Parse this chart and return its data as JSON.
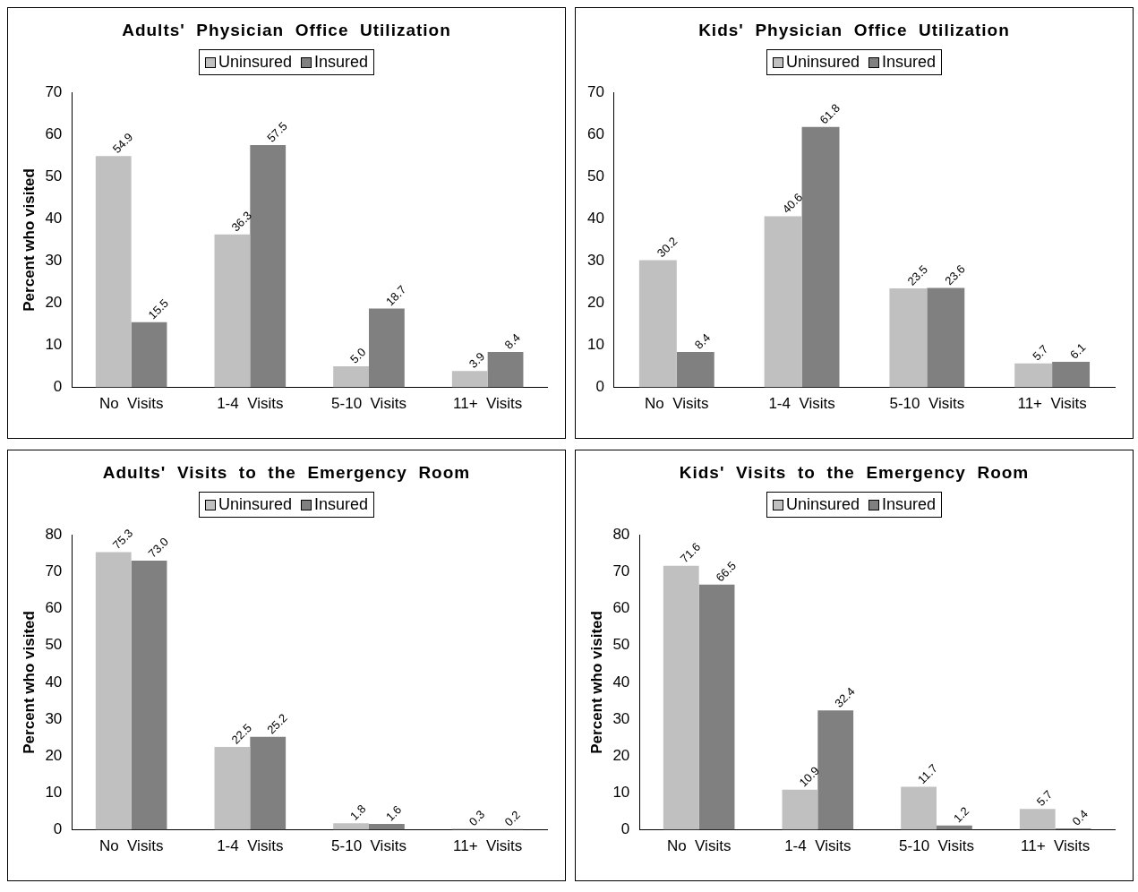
{
  "chart_data": [
    {
      "type": "bar",
      "title": "Adults'  Physician  Office  Utilization",
      "ylabel": "Percent who visited",
      "categories": [
        "No  Visits",
        "1-4  Visits",
        "5-10  Visits",
        "11+  Visits"
      ],
      "series": [
        {
          "name": "Uninsured",
          "color": "#c0c0c0",
          "values": [
            54.9,
            36.3,
            5.0,
            3.9
          ],
          "value_labels": [
            "54.9",
            "36.3",
            "5.0",
            "3.9"
          ]
        },
        {
          "name": "Insured",
          "color": "#808080",
          "values": [
            15.5,
            57.5,
            18.7,
            8.4
          ],
          "value_labels": [
            "15.5",
            "57.5",
            "18.7",
            "8.4"
          ]
        }
      ],
      "ylim": [
        0,
        70
      ],
      "yticks": [
        0,
        10,
        20,
        30,
        40,
        50,
        60,
        70
      ],
      "legend": "top",
      "grid": false
    },
    {
      "type": "bar",
      "title": "Kids'  Physician  Office  Utilization",
      "categories": [
        "No  Visits",
        "1-4  Visits",
        "5-10  Visits",
        "11+  Visits"
      ],
      "series": [
        {
          "name": "Uninsured",
          "color": "#c0c0c0",
          "values": [
            30.2,
            40.6,
            23.5,
            5.7
          ],
          "value_labels": [
            "30.2",
            "40.6",
            "23.5",
            "5.7"
          ]
        },
        {
          "name": "Insured",
          "color": "#808080",
          "values": [
            8.4,
            61.8,
            23.6,
            6.1
          ],
          "value_labels": [
            "8.4",
            "61.8",
            "23.6",
            "6.1"
          ]
        }
      ],
      "ylim": [
        0,
        70
      ],
      "yticks": [
        0,
        10,
        20,
        30,
        40,
        50,
        60,
        70
      ],
      "legend": "top",
      "grid": false
    },
    {
      "type": "bar",
      "title": "Adults'  Visits  to  the  Emergency  Room",
      "ylabel": "Percent who visited",
      "categories": [
        "No  Visits",
        "1-4  Visits",
        "5-10  Visits",
        "11+  Visits"
      ],
      "series": [
        {
          "name": "Uninsured",
          "color": "#c0c0c0",
          "values": [
            75.3,
            22.5,
            1.8,
            0.3
          ],
          "value_labels": [
            "75.3",
            "22.5",
            "1.8",
            "0.3"
          ]
        },
        {
          "name": "Insured",
          "color": "#808080",
          "values": [
            73.0,
            25.2,
            1.6,
            0.2
          ],
          "value_labels": [
            "73.0",
            "25.2",
            "1.6",
            "0.2"
          ]
        }
      ],
      "ylim": [
        0,
        80
      ],
      "yticks": [
        0,
        10,
        20,
        30,
        40,
        50,
        60,
        70,
        80
      ],
      "legend": "top",
      "grid": false
    },
    {
      "type": "bar",
      "title": "Kids'  Visits  to  the  Emergency  Room",
      "ylabel": "Percent who visited",
      "categories": [
        "No  Visits",
        "1-4  Visits",
        "5-10  Visits",
        "11+  Visits"
      ],
      "series": [
        {
          "name": "Uninsured",
          "color": "#c0c0c0",
          "values": [
            71.6,
            10.9,
            11.7,
            5.7
          ],
          "value_labels": [
            "71.6",
            "10.9",
            "11.7",
            "5.7"
          ]
        },
        {
          "name": "Insured",
          "color": "#808080",
          "values": [
            66.5,
            32.4,
            1.2,
            0.4
          ],
          "value_labels": [
            "66.5",
            "32.4",
            "1.2",
            "0.4"
          ]
        }
      ],
      "ylim": [
        0,
        80
      ],
      "yticks": [
        0,
        10,
        20,
        30,
        40,
        50,
        60,
        70,
        80
      ],
      "legend": "top",
      "grid": false
    }
  ]
}
